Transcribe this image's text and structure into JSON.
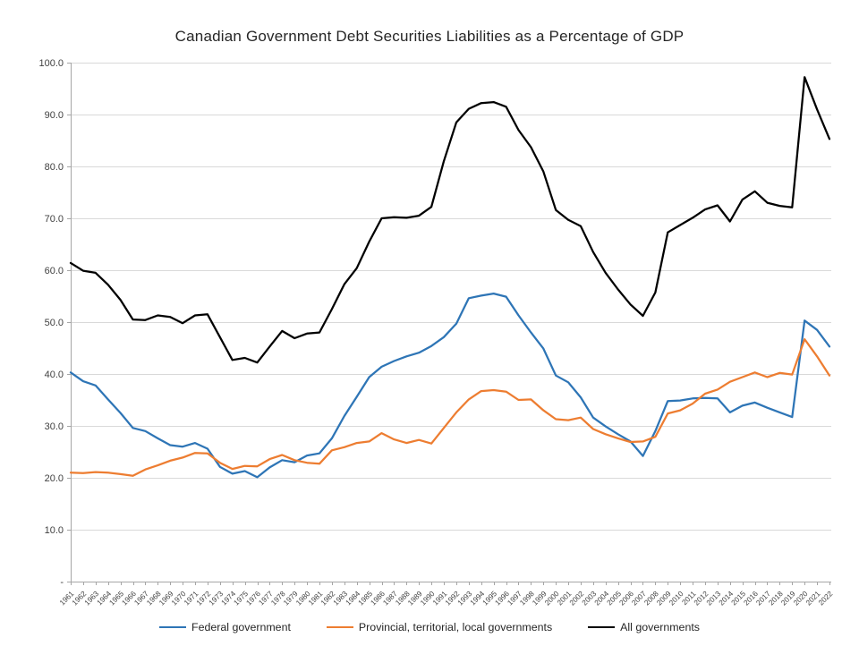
{
  "title": "Canadian Government Debt Securities Liabilities as a Percentage of GDP",
  "chart_data": {
    "type": "line",
    "title": "Canadian Government Debt Securities Liabilities as a Percentage of GDP",
    "xlabel": "",
    "ylabel": "",
    "ylim": [
      0,
      100
    ],
    "grid": true,
    "legend_position": "bottom",
    "y_tick_labels": [
      "-",
      "10.0",
      "20.0",
      "30.0",
      "40.0",
      "50.0",
      "60.0",
      "70.0",
      "80.0",
      "90.0",
      "100.0"
    ],
    "categories": [
      "1961",
      "1962",
      "1963",
      "1964",
      "1965",
      "1966",
      "1967",
      "1968",
      "1969",
      "1970",
      "1971",
      "1972",
      "1973",
      "1974",
      "1975",
      "1976",
      "1977",
      "1978",
      "1979",
      "1980",
      "1981",
      "1982",
      "1983",
      "1984",
      "1985",
      "1986",
      "1987",
      "1988",
      "1989",
      "1990",
      "1991",
      "1992",
      "1993",
      "1994",
      "1995",
      "1996",
      "1997",
      "1998",
      "1999",
      "2000",
      "2001",
      "2002",
      "2003",
      "2004",
      "2005",
      "2006",
      "2007",
      "2008",
      "2009",
      "2010",
      "2011",
      "2012",
      "2013",
      "2014",
      "2015",
      "2016",
      "2017",
      "2018",
      "2019",
      "2020",
      "2021",
      "2022"
    ],
    "series": [
      {
        "name": "Federal government",
        "color": "#2E75B6",
        "values": [
          40.3,
          38.6,
          37.8,
          35.1,
          32.5,
          29.6,
          29.0,
          27.6,
          26.3,
          26.0,
          26.7,
          25.6,
          22.1,
          20.8,
          21.3,
          20.1,
          22.0,
          23.4,
          23.0,
          24.3,
          24.7,
          27.6,
          31.9,
          35.6,
          39.4,
          41.4,
          42.5,
          43.4,
          44.1,
          45.4,
          47.1,
          49.7,
          54.6,
          55.1,
          55.5,
          54.9,
          51.3,
          48.0,
          44.9,
          39.7,
          38.4,
          35.5,
          31.6,
          29.9,
          28.4,
          27.0,
          24.2,
          29.0,
          34.8,
          34.9,
          35.3,
          35.4,
          35.3,
          32.6,
          33.9,
          34.5,
          33.5,
          32.6,
          31.7,
          50.3,
          48.5,
          45.3
        ]
      },
      {
        "name": "Provincial, territorial, local governments",
        "color": "#ED7D31",
        "values": [
          21.0,
          20.9,
          21.1,
          21.0,
          20.7,
          20.4,
          21.6,
          22.4,
          23.3,
          23.9,
          24.8,
          24.7,
          22.9,
          21.7,
          22.3,
          22.2,
          23.6,
          24.4,
          23.4,
          22.9,
          22.7,
          25.3,
          25.9,
          26.7,
          27.0,
          28.6,
          27.4,
          26.7,
          27.3,
          26.6,
          29.6,
          32.6,
          35.1,
          36.7,
          36.9,
          36.6,
          35.0,
          35.1,
          33.0,
          31.3,
          31.1,
          31.6,
          29.4,
          28.4,
          27.6,
          26.9,
          27.0,
          27.9,
          32.4,
          33.0,
          34.3,
          36.2,
          37.0,
          38.5,
          39.4,
          40.3,
          39.4,
          40.2,
          39.9,
          46.7,
          43.4,
          39.7
        ]
      },
      {
        "name": "All governments",
        "color": "#000000",
        "values": [
          61.4,
          59.9,
          59.5,
          57.2,
          54.3,
          50.5,
          50.4,
          51.3,
          51.0,
          49.8,
          51.3,
          51.5,
          47.1,
          42.7,
          43.1,
          42.2,
          45.3,
          48.3,
          46.9,
          47.8,
          48.0,
          52.5,
          57.3,
          60.4,
          65.5,
          70.0,
          70.2,
          70.1,
          70.5,
          72.2,
          81.0,
          88.5,
          91.1,
          92.2,
          92.4,
          91.5,
          87.0,
          83.7,
          79.0,
          71.6,
          69.7,
          68.5,
          63.5,
          59.5,
          56.3,
          53.4,
          51.2,
          55.7,
          67.3,
          68.7,
          70.1,
          71.7,
          72.5,
          69.4,
          73.6,
          75.2,
          73.0,
          72.4,
          72.1,
          97.2,
          91.0,
          85.3
        ]
      }
    ]
  },
  "style_colors": {
    "gridline": "#D9D9D9",
    "axis": "#A6A6A6",
    "tick": "#A6A6A6",
    "axis_text": "#404040",
    "title_text": "#262626",
    "background": "#FFFFFF"
  }
}
